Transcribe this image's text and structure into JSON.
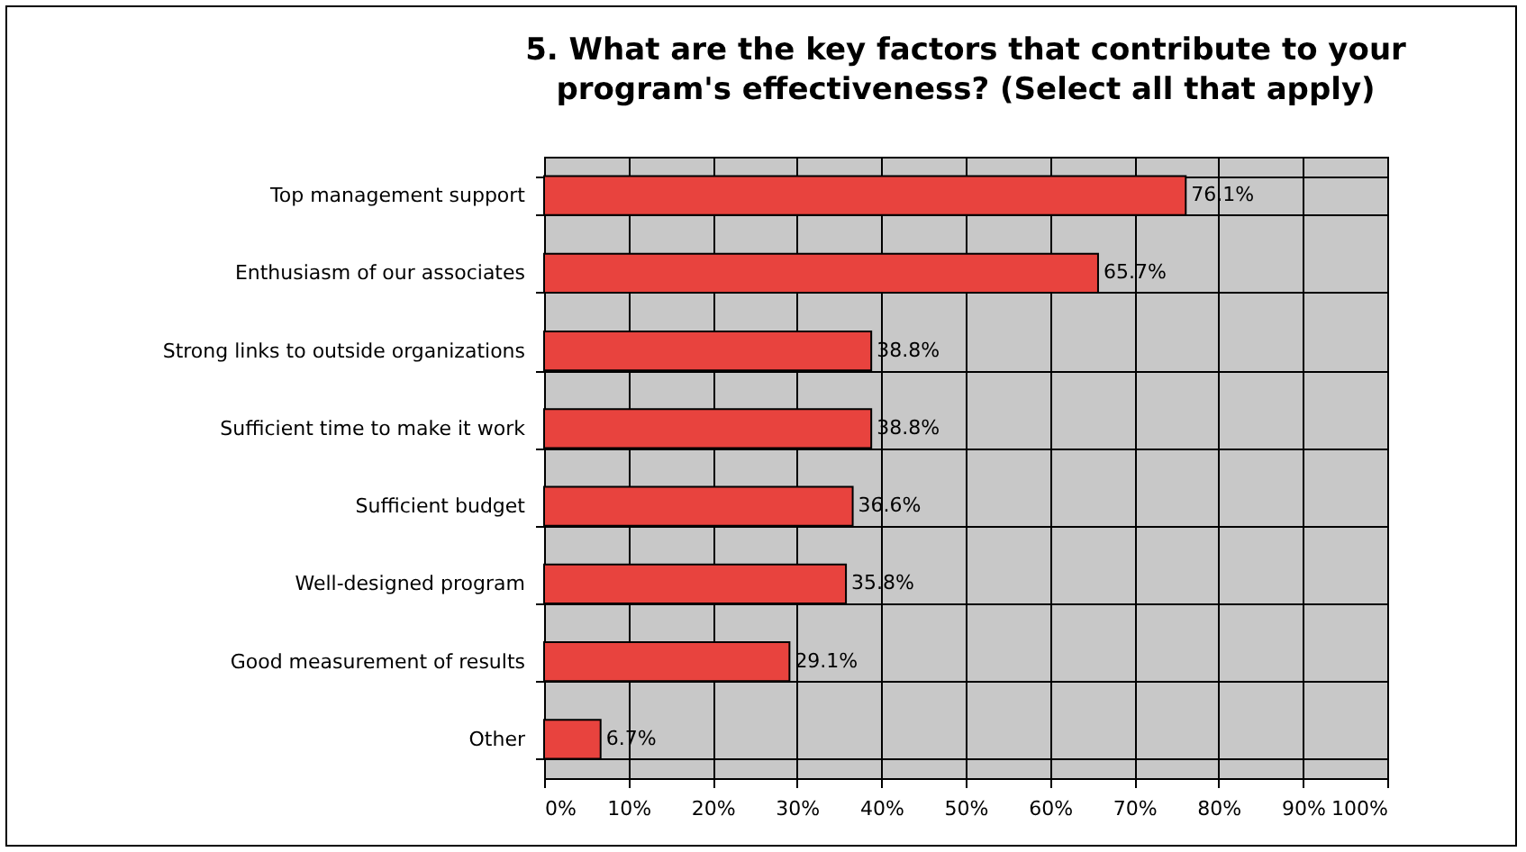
{
  "chart_data": {
    "type": "bar",
    "orientation": "horizontal",
    "title": "5. What are the key factors that contribute to your\nprogram's effectiveness?  (Select all that apply)",
    "categories": [
      "Top management support",
      "Enthusiasm of our associates",
      "Strong links to outside organizations",
      "Sufficient time to make it work",
      "Sufficient budget",
      "Well-designed program",
      "Good measurement of results",
      "Other"
    ],
    "values": [
      76.1,
      65.7,
      38.8,
      38.8,
      36.6,
      35.8,
      29.1,
      6.7
    ],
    "value_labels": [
      "76.1%",
      "65.7%",
      "38.8%",
      "38.8%",
      "36.6%",
      "35.8%",
      "29.1%",
      "6.7%"
    ],
    "color": "#e8433e",
    "xlim": [
      0,
      100
    ],
    "xticks": [
      {
        "value": 0,
        "label": "0%"
      },
      {
        "value": 10,
        "label": "10%"
      },
      {
        "value": 20,
        "label": "20%"
      },
      {
        "value": 30,
        "label": "30%"
      },
      {
        "value": 40,
        "label": "40%"
      },
      {
        "value": 50,
        "label": "50%"
      },
      {
        "value": 60,
        "label": "60%"
      },
      {
        "value": 70,
        "label": "70%"
      },
      {
        "value": 80,
        "label": "80%"
      },
      {
        "value": 90,
        "label": "90%"
      },
      {
        "value": 100,
        "label": "100%"
      }
    ],
    "grid": true
  }
}
